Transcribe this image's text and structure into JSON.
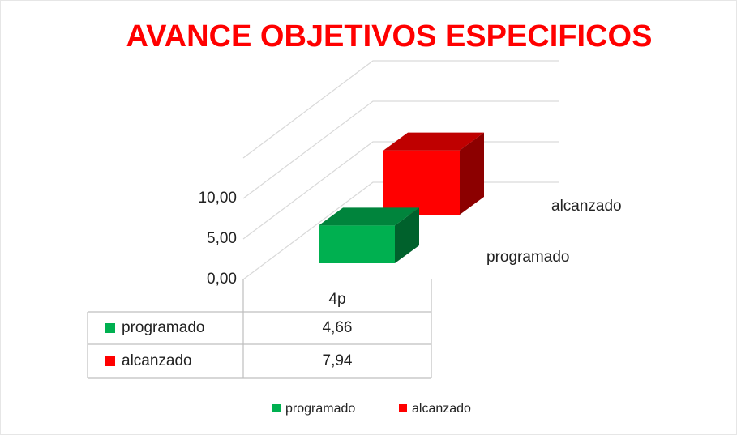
{
  "chart_data": {
    "type": "bar3d",
    "title": "AVANCE OBJETIVOS ESPECIFICOS",
    "categories": [
      "4p"
    ],
    "series": [
      {
        "name": "programado",
        "color": "#00b050",
        "values": [
          4.66
        ],
        "value_labels": [
          "4,66"
        ]
      },
      {
        "name": "alcanzado",
        "color": "#ff0000",
        "values": [
          7.94
        ],
        "value_labels": [
          "7,94"
        ]
      }
    ],
    "ylim": [
      0,
      15
    ],
    "yticks": [
      {
        "value": 0,
        "label": "0,00"
      },
      {
        "value": 5,
        "label": "5,00"
      },
      {
        "value": 10,
        "label": "10,00"
      }
    ],
    "grid": true,
    "legend": "bottom",
    "data_table": true
  }
}
